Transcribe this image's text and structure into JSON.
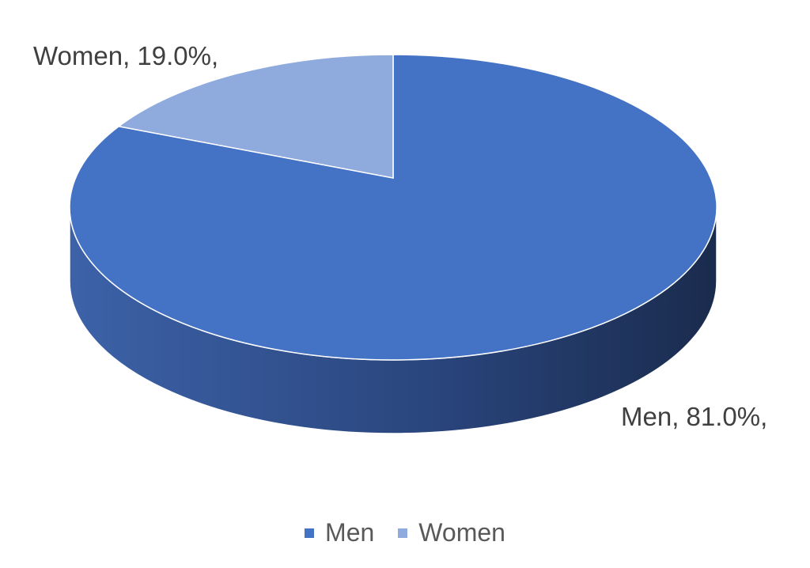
{
  "chart_data": {
    "type": "pie",
    "style": "3d",
    "categories": [
      "Men",
      "Women"
    ],
    "values": [
      81.0,
      19.0
    ],
    "data_labels": [
      "Men, 81.0%,",
      "Women, 19.0%,"
    ],
    "colors": {
      "Men": "#4472c4",
      "Women": "#8faadc"
    },
    "legend": {
      "position": "bottom",
      "entries": [
        "Men",
        "Women"
      ]
    }
  }
}
